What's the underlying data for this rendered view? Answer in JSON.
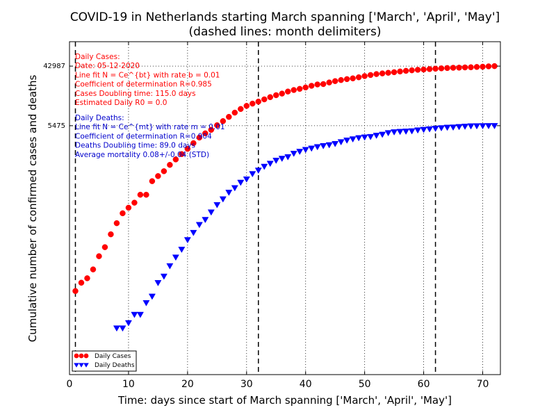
{
  "chart_data": {
    "type": "scatter",
    "title": "COVID-19 in Netherlands starting March spanning ['March', 'April', 'May']",
    "subtitle": "(dashed lines: month delimiters)",
    "xlabel": "Time: days since start of March spanning ['March', 'April', 'May']",
    "ylabel": "Cumulative number of confirmed cases and deaths",
    "xlim": [
      0,
      73
    ],
    "x_ticks": [
      0,
      10,
      20,
      30,
      40,
      50,
      60,
      70
    ],
    "y_scale": "log",
    "ylim": [
      1,
      100000
    ],
    "y_reference": [
      {
        "label": "42987",
        "value": 42987
      },
      {
        "label": "5475",
        "value": 5475
      }
    ],
    "month_delimiters": [
      1,
      32,
      62
    ],
    "grid": true,
    "legend_position": "lower-left",
    "series": [
      {
        "name": "Daily Cases",
        "marker": "circle",
        "color": "#ff0000",
        "x": [
          1,
          2,
          3,
          4,
          5,
          6,
          7,
          8,
          9,
          10,
          11,
          12,
          13,
          14,
          15,
          16,
          17,
          18,
          19,
          20,
          21,
          22,
          23,
          24,
          25,
          26,
          27,
          28,
          29,
          30,
          31,
          32,
          33,
          34,
          35,
          36,
          37,
          38,
          39,
          40,
          41,
          42,
          43,
          44,
          45,
          46,
          47,
          48,
          49,
          50,
          51,
          52,
          53,
          54,
          55,
          56,
          57,
          58,
          59,
          60,
          61,
          62,
          63,
          64,
          65,
          66,
          67,
          68,
          69,
          70,
          71,
          72
        ],
        "y": [
          18,
          24,
          28,
          38,
          60,
          82,
          128,
          188,
          265,
          321,
          382,
          503,
          503,
          804,
          959,
          1135,
          1413,
          1705,
          2051,
          2460,
          2994,
          3631,
          4204,
          4749,
          5560,
          6412,
          7431,
          8603,
          9762,
          10866,
          11750,
          12595,
          13614,
          14697,
          15723,
          16627,
          17851,
          18803,
          19580,
          20549,
          21762,
          22797,
          23097,
          24413,
          25587,
          26551,
          27419,
          28153,
          29214,
          30449,
          31589,
          32655,
          33405,
          34134,
          34842,
          35729,
          36535,
          37190,
          37845,
          38245,
          38802,
          39316,
          39791,
          40236,
          40571,
          40770,
          41087,
          41319,
          41774,
          42093,
          42627,
          42987
        ]
      },
      {
        "name": "Daily Deaths",
        "marker": "triangle-down",
        "color": "#0000ff",
        "x": [
          6,
          7,
          8,
          9,
          10,
          11,
          12,
          13,
          14,
          15,
          16,
          17,
          18,
          19,
          20,
          21,
          22,
          23,
          24,
          25,
          26,
          27,
          28,
          29,
          30,
          31,
          32,
          33,
          34,
          35,
          36,
          37,
          38,
          39,
          40,
          41,
          42,
          43,
          44,
          45,
          46,
          47,
          48,
          49,
          50,
          51,
          52,
          53,
          54,
          55,
          56,
          57,
          58,
          59,
          60,
          61,
          62,
          63,
          64,
          65,
          66,
          67,
          68,
          69,
          70,
          71,
          72
        ],
        "y": [
          2,
          2,
          5,
          5,
          6,
          8,
          8,
          12,
          15,
          24,
          30,
          43,
          58,
          76,
          106,
          136,
          179,
          213,
          276,
          356,
          434,
          546,
          639,
          771,
          864,
          1039,
          1173,
          1339,
          1487,
          1651,
          1766,
          1867,
          2101,
          2248,
          2396,
          2511,
          2643,
          2737,
          2823,
          2945,
          3134,
          3315,
          3459,
          3601,
          3684,
          3751,
          3916,
          4054,
          4289,
          4409,
          4475,
          4518,
          4566,
          4711,
          4795,
          4893,
          4987,
          5082,
          5168,
          5204,
          5288,
          5359,
          5422,
          5440,
          5456,
          5470,
          5475
        ]
      }
    ],
    "annotations": {
      "cases": [
        "Daily Cases:",
        "Date: 05-12-2020",
        "Line fit N = Ce^{bt} with rate b = 0.01",
        "Coefficient of determination R=0.985",
        "Cases Doubling time: 115.0 days",
        "Estimated Daily R0 = 0.0"
      ],
      "deaths": [
        "Daily Deaths:",
        "Line fit N = Ce^{mt} with rate m = 0.01",
        "Coefficient of determination R=0.904",
        "Deaths Doubling time: 89.0 days",
        "Average mortality 0.08+/-0.04 (STD)"
      ]
    }
  }
}
